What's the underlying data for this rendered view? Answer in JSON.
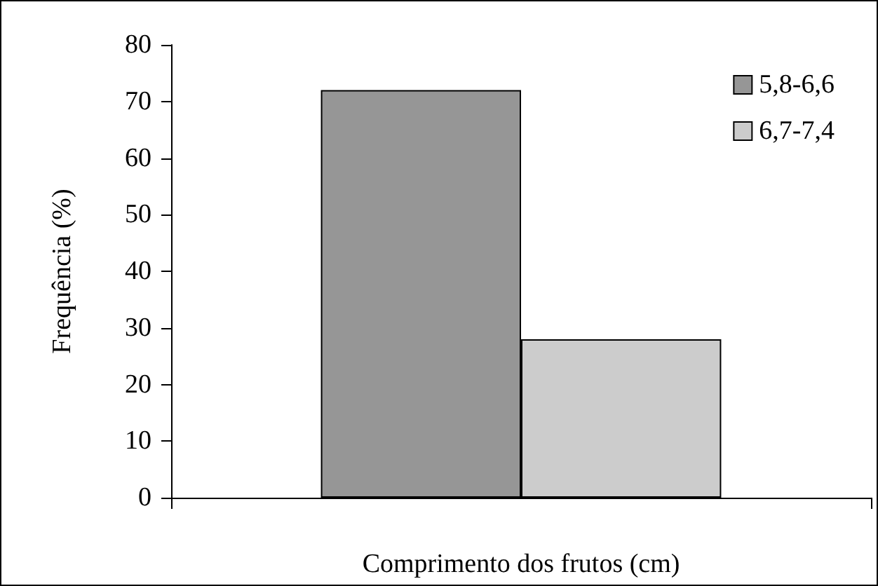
{
  "chart_data": {
    "type": "bar",
    "xlabel": "Comprimento dos frutos (cm)",
    "ylabel": "Frequência (%)",
    "categories": [
      null
    ],
    "series": [
      {
        "name": "5,8-6,6",
        "color": "#969696",
        "values": [
          72
        ]
      },
      {
        "name": "6,7-7,4",
        "color": "#cccccc",
        "values": [
          28
        ]
      }
    ],
    "ylim": [
      0,
      80
    ],
    "yticks": [
      0,
      10,
      20,
      30,
      40,
      50,
      60,
      70,
      80
    ],
    "grid": false,
    "legend": "top right"
  }
}
